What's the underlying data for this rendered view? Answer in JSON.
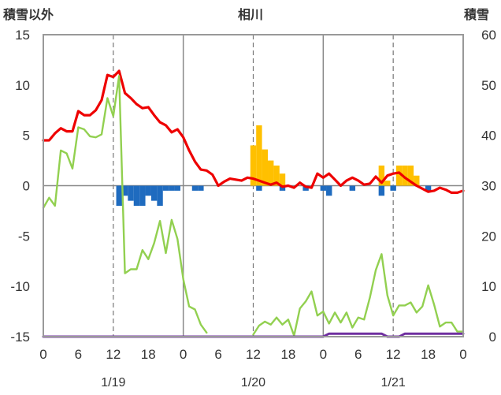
{
  "chart_data": {
    "type": "line",
    "title": "相川",
    "left_axis_label": "積雪以外",
    "right_axis_label": "積雪",
    "left_ylim": [
      -15,
      15
    ],
    "left_ticks": [
      "15",
      "10",
      "5",
      "0",
      "-5",
      "-10",
      "-15"
    ],
    "right_ylim": [
      0,
      60
    ],
    "right_ticks": [
      "60",
      "50",
      "40",
      "30",
      "20",
      "10",
      "0"
    ],
    "x_range_hours": [
      0,
      72
    ],
    "x_tick_labels": [
      "0",
      "6",
      "12",
      "18",
      "0",
      "6",
      "12",
      "18",
      "0",
      "6",
      "12",
      "18",
      "0"
    ],
    "date_labels": [
      {
        "hour": 12,
        "text": "1/19"
      },
      {
        "hour": 36,
        "text": "1/20"
      },
      {
        "hour": 60,
        "text": "1/21"
      }
    ],
    "grid": "vertical solid lines at day boundaries, dashed lines at noon; horizontal zero line",
    "series": [
      {
        "color": "#ee0000",
        "axis": "left",
        "x": [
          0,
          1,
          2,
          3,
          4,
          5,
          6,
          7,
          8,
          9,
          10,
          11,
          12,
          13,
          14,
          15,
          16,
          17,
          18,
          19,
          20,
          21,
          22,
          23,
          24,
          25,
          26,
          27,
          28,
          29,
          30,
          31,
          32,
          33,
          34,
          35,
          36,
          37,
          38,
          39,
          40,
          41,
          42,
          43,
          44,
          45,
          46,
          47,
          48,
          49,
          50,
          51,
          52,
          53,
          54,
          55,
          56,
          57,
          58,
          59,
          60,
          61,
          62,
          63,
          64,
          65,
          66,
          67,
          68,
          69,
          70,
          71,
          72
        ],
        "values": [
          4.5,
          4.5,
          5.2,
          5.7,
          5.4,
          5.4,
          7.4,
          7.0,
          7.0,
          7.5,
          8.5,
          11.0,
          10.8,
          11.4,
          9.2,
          8.7,
          8.1,
          7.7,
          7.8,
          7.0,
          6.3,
          6.0,
          5.3,
          5.6,
          4.8,
          3.5,
          2.4,
          1.6,
          1.5,
          1.1,
          0.0,
          0.4,
          0.7,
          0.6,
          0.5,
          0.8,
          0.7,
          0.5,
          0.3,
          0.1,
          0.3,
          -0.1,
          0.0,
          -0.2,
          0.3,
          -0.1,
          -0.2,
          1.2,
          0.8,
          1.2,
          0.6,
          0.0,
          0.5,
          0.8,
          0.5,
          0.1,
          0.2,
          0.9,
          0.3,
          1.0,
          1.2,
          1.3,
          0.8,
          0.4,
          0.0,
          -0.3,
          -0.6,
          -0.5,
          -0.2,
          -0.4,
          -0.7,
          -0.7,
          -0.5
        ]
      },
      {
        "color": "#92d050",
        "axis": "left",
        "x": [
          0,
          1,
          2,
          3,
          4,
          5,
          6,
          7,
          8,
          9,
          10,
          11,
          12,
          13,
          14,
          15,
          16,
          17,
          18,
          19,
          20,
          21,
          22,
          23,
          24,
          25,
          26,
          27,
          28
        ],
        "values": [
          -2.2,
          -1.2,
          -2.0,
          3.5,
          3.2,
          1.7,
          5.8,
          5.6,
          4.9,
          4.8,
          5.1,
          8.7,
          6.9,
          10.9,
          -8.7,
          -8.3,
          -8.3,
          -6.4,
          -7.3,
          -5.7,
          -3.5,
          -6.7,
          -3.4,
          -5.3,
          -9.3,
          -12.0,
          -12.3,
          -13.8,
          -14.6
        ]
      },
      {
        "color": "#92d050",
        "axis": "left",
        "x": [
          36,
          37,
          38,
          39,
          40,
          41,
          42,
          43,
          44,
          45,
          46,
          47,
          48,
          49,
          50,
          51,
          52,
          53,
          54,
          55,
          56,
          57,
          58,
          59,
          60,
          61,
          62,
          63,
          64,
          65,
          66,
          67,
          68,
          69,
          70,
          71,
          72
        ],
        "values": [
          -14.8,
          -13.9,
          -13.5,
          -13.8,
          -13.1,
          -13.8,
          -13.3,
          -14.9,
          -12.2,
          -11.5,
          -10.5,
          -12.9,
          -12.5,
          -13.7,
          -12.6,
          -13.6,
          -12.6,
          -14.1,
          -13.1,
          -13.3,
          -11.1,
          -8.4,
          -6.8,
          -10.9,
          -12.9,
          -11.9,
          -11.9,
          -11.6,
          -12.6,
          -12.0,
          -9.9,
          -11.8,
          -14.0,
          -13.6,
          -13.6,
          -14.5,
          -14.5
        ]
      },
      {
        "color": "#7030a0",
        "axis": "right",
        "x": [
          0,
          48,
          49,
          58,
          59,
          61,
          62,
          72
        ],
        "values": [
          0,
          0,
          0.6,
          0.6,
          0,
          0,
          0.6,
          0.6
        ]
      }
    ],
    "bar_series": [
      {
        "color": "#ffc000",
        "axis": "left",
        "bars": [
          {
            "x": 36,
            "value": 4.0
          },
          {
            "x": 37,
            "value": 6.0
          },
          {
            "x": 38,
            "value": 3.6
          },
          {
            "x": 39,
            "value": 2.5
          },
          {
            "x": 40,
            "value": 2.0
          },
          {
            "x": 41,
            "value": 1.2
          },
          {
            "x": 58,
            "value": 2.0
          },
          {
            "x": 59,
            "value": 0.5
          },
          {
            "x": 61,
            "value": 2.0
          },
          {
            "x": 62,
            "value": 2.0
          },
          {
            "x": 63,
            "value": 2.0
          },
          {
            "x": 64,
            "value": 1.0
          }
        ]
      },
      {
        "color": "#1f6bbf",
        "axis": "left",
        "bars": [
          {
            "x": 13,
            "value": -2.0
          },
          {
            "x": 14,
            "value": -1.0
          },
          {
            "x": 15,
            "value": -1.5
          },
          {
            "x": 16,
            "value": -2.0
          },
          {
            "x": 17,
            "value": -2.0
          },
          {
            "x": 18,
            "value": -1.0
          },
          {
            "x": 19,
            "value": -1.5
          },
          {
            "x": 20,
            "value": -2.0
          },
          {
            "x": 21,
            "value": -0.5
          },
          {
            "x": 22,
            "value": -0.5
          },
          {
            "x": 23,
            "value": -0.5
          },
          {
            "x": 26,
            "value": -0.5
          },
          {
            "x": 27,
            "value": -0.5
          },
          {
            "x": 37,
            "value": -0.5
          },
          {
            "x": 41,
            "value": -0.5
          },
          {
            "x": 45,
            "value": -0.5
          },
          {
            "x": 48,
            "value": -0.5
          },
          {
            "x": 49,
            "value": -1.0
          },
          {
            "x": 53,
            "value": -0.5
          },
          {
            "x": 58,
            "value": -1.0
          },
          {
            "x": 60,
            "value": -0.5
          },
          {
            "x": 66,
            "value": -0.5
          }
        ]
      }
    ]
  }
}
